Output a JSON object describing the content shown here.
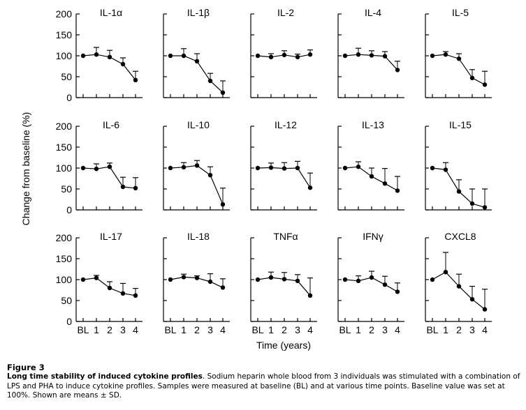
{
  "chart_data": {
    "type": "line",
    "figure_label": "Figure 3",
    "ylabel": "Change from baseline (%)",
    "xlabel": "Time (years)",
    "x_categories": [
      "BL",
      "1",
      "2",
      "3",
      "4"
    ],
    "y_ticks": [
      "0",
      "50",
      "100",
      "150",
      "200"
    ],
    "ylim": [
      0,
      200
    ],
    "error_bars": "mean + SD (upper only)",
    "panels": [
      {
        "title": "IL-1α",
        "values": [
          100,
          103,
          97,
          80,
          42
        ],
        "sd_upper": [
          100,
          120,
          113,
          95,
          63
        ]
      },
      {
        "title": "IL-1β",
        "values": [
          100,
          100,
          87,
          40,
          12
        ],
        "sd_upper": [
          100,
          117,
          105,
          58,
          40
        ]
      },
      {
        "title": "IL-2",
        "values": [
          100,
          97,
          102,
          97,
          103
        ],
        "sd_upper": [
          100,
          105,
          112,
          104,
          114
        ]
      },
      {
        "title": "IL-4",
        "values": [
          100,
          103,
          101,
          99,
          66
        ],
        "sd_upper": [
          100,
          118,
          112,
          110,
          87
        ]
      },
      {
        "title": "IL-5",
        "values": [
          100,
          103,
          93,
          47,
          31
        ],
        "sd_upper": [
          100,
          110,
          105,
          67,
          63
        ]
      },
      {
        "title": "IL-6",
        "values": [
          100,
          98,
          103,
          55,
          52
        ],
        "sd_upper": [
          100,
          110,
          112,
          78,
          77
        ]
      },
      {
        "title": "IL-10",
        "values": [
          100,
          102,
          106,
          83,
          13
        ],
        "sd_upper": [
          100,
          113,
          118,
          103,
          52
        ]
      },
      {
        "title": "IL-12",
        "values": [
          100,
          101,
          99,
          100,
          53
        ],
        "sd_upper": [
          100,
          112,
          113,
          116,
          88
        ]
      },
      {
        "title": "IL-13",
        "values": [
          100,
          103,
          80,
          63,
          46
        ],
        "sd_upper": [
          100,
          115,
          100,
          99,
          80
        ]
      },
      {
        "title": "IL-15",
        "values": [
          100,
          96,
          44,
          15,
          6
        ],
        "sd_upper": [
          100,
          113,
          72,
          50,
          50
        ]
      },
      {
        "title": "IL-17",
        "values": [
          100,
          104,
          80,
          67,
          62
        ],
        "sd_upper": [
          100,
          110,
          95,
          91,
          79
        ]
      },
      {
        "title": "IL-18",
        "values": [
          100,
          106,
          104,
          95,
          81
        ],
        "sd_upper": [
          100,
          113,
          109,
          114,
          102
        ]
      },
      {
        "title": "TNFα",
        "values": [
          100,
          105,
          101,
          97,
          62
        ],
        "sd_upper": [
          100,
          118,
          117,
          112,
          104
        ]
      },
      {
        "title": "IFNγ",
        "values": [
          100,
          97,
          105,
          88,
          71
        ],
        "sd_upper": [
          100,
          109,
          120,
          108,
          92
        ]
      },
      {
        "title": "CXCL8",
        "values": [
          100,
          118,
          84,
          53,
          29
        ],
        "sd_upper": [
          100,
          165,
          113,
          84,
          77
        ]
      }
    ]
  },
  "caption": {
    "figure": "Figure 3",
    "title": "Long time stability of induced cytokine profiles",
    "body": ". Sodium heparin whole blood from 3 individuals was stimulated with a combination of LPS and PHA to induce cytokine profiles. Samples were measured at baseline (BL) and at various time points. Baseline value was set at 100%. Shown are means ± SD."
  }
}
